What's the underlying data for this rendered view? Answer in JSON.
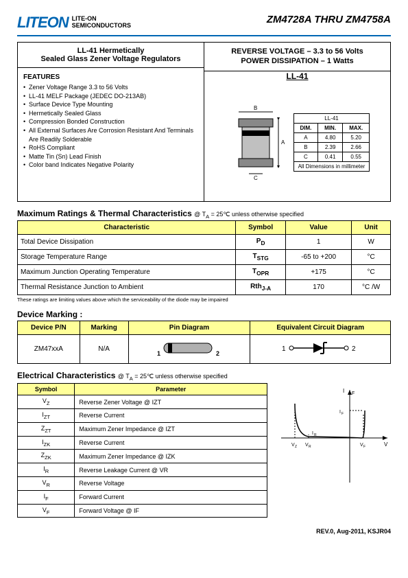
{
  "header": {
    "logo": "LITEON",
    "logo_sub1": "LITE-ON",
    "logo_sub2": "SEMICONDUCTORS",
    "title_right": "ZM4728A THRU ZM4758A"
  },
  "top": {
    "left_title1": "LL-41 Hermetically",
    "left_title2": "Sealed Glass Zener Voltage Regulators",
    "right_title1": "REVERSE VOLTAGE – 3.3 to 56 Volts",
    "right_title2": "POWER DISSIPATION – 1 Watts",
    "features_heading": "FEATURES",
    "features": [
      "Zener Voltage Range 3.3 to 56 Volts",
      "LL-41 MELF Package (JEDEC DO-213AB)",
      "Surface Device Type Mounting",
      "Hermetically Sealed Glass",
      "Compression Bonded Construction",
      "All External Surfaces Are Corrosion Resistant And Terminals Are Readily Solderable",
      "RoHS Compliant",
      "Matte Tin (Sn) Lead Finish",
      "Color band Indicates Negative Polarity"
    ],
    "package_label": "LL-41",
    "dim_header": [
      "DIM.",
      "MIN.",
      "MAX."
    ],
    "dim_title": "LL-41",
    "dims": [
      [
        "A",
        "4.80",
        "5.20"
      ],
      [
        "B",
        "2.39",
        "2.66"
      ],
      [
        "C",
        "0.41",
        "0.55"
      ]
    ],
    "dim_note": "All Dimensions in millimeter"
  },
  "max_ratings": {
    "title": "Maximum Ratings & Thermal Characteristics",
    "condition": " @ T",
    "condition_sub": "A",
    "condition2": " = 25℃ unless otherwise specified",
    "headers": [
      "Characteristic",
      "Symbol",
      "Value",
      "Unit"
    ],
    "rows": [
      {
        "c": "Total Device Dissipation",
        "s": "P",
        "ss": "D",
        "v": "1",
        "u": "W"
      },
      {
        "c": "Storage Temperature Range",
        "s": "T",
        "ss": "STG",
        "v": "-65 to +200",
        "u": "°C"
      },
      {
        "c": "Maximum Junction Operating Temperature",
        "s": "T",
        "ss": "OPR",
        "v": "+175",
        "u": "°C"
      },
      {
        "c": "Thermal Resistance Junction to Ambient",
        "s": "Rth",
        "ss": "J-A",
        "v": "170",
        "u": "°C /W"
      }
    ],
    "note": "These ratings are limiting values above which the serviceability of the diode may be impaired"
  },
  "marking": {
    "title": "Device Marking :",
    "headers": [
      "Device P/N",
      "Marking",
      "Pin Diagram",
      "Equivalent Circuit Diagram"
    ],
    "pn": "ZM47xxA",
    "mark": "N/A"
  },
  "electrical": {
    "title": "Electrical Characteristics",
    "condition": " @ T",
    "condition_sub": "A",
    "condition2": " = 25℃ unless otherwise specified",
    "headers": [
      "Symbol",
      "Parameter"
    ],
    "rows": [
      {
        "s": "V",
        "ss": "Z",
        "p": "Reverse Zener Voltage @ IZT"
      },
      {
        "s": "I",
        "ss": "ZT",
        "p": "Reverse Current"
      },
      {
        "s": "Z",
        "ss": "ZT",
        "p": "Maximum Zener Impedance @ IZT"
      },
      {
        "s": "I",
        "ss": "ZK",
        "p": "Reverse Current"
      },
      {
        "s": "Z",
        "ss": "ZK",
        "p": "Maximum Zener Impedance @ IZK"
      },
      {
        "s": "I",
        "ss": "R",
        "p": "Reverse Leakage Current @ VR"
      },
      {
        "s": "V",
        "ss": "R",
        "p": "Reverse Voltage"
      },
      {
        "s": "I",
        "ss": "F",
        "p": "Forward Current"
      },
      {
        "s": "V",
        "ss": "F",
        "p": "Forward Voltage @ IF"
      }
    ]
  },
  "footer": "REV.0, Aug-2011, KSJR04",
  "colors": {
    "accent": "#0066b3",
    "highlight": "#ffff99"
  }
}
